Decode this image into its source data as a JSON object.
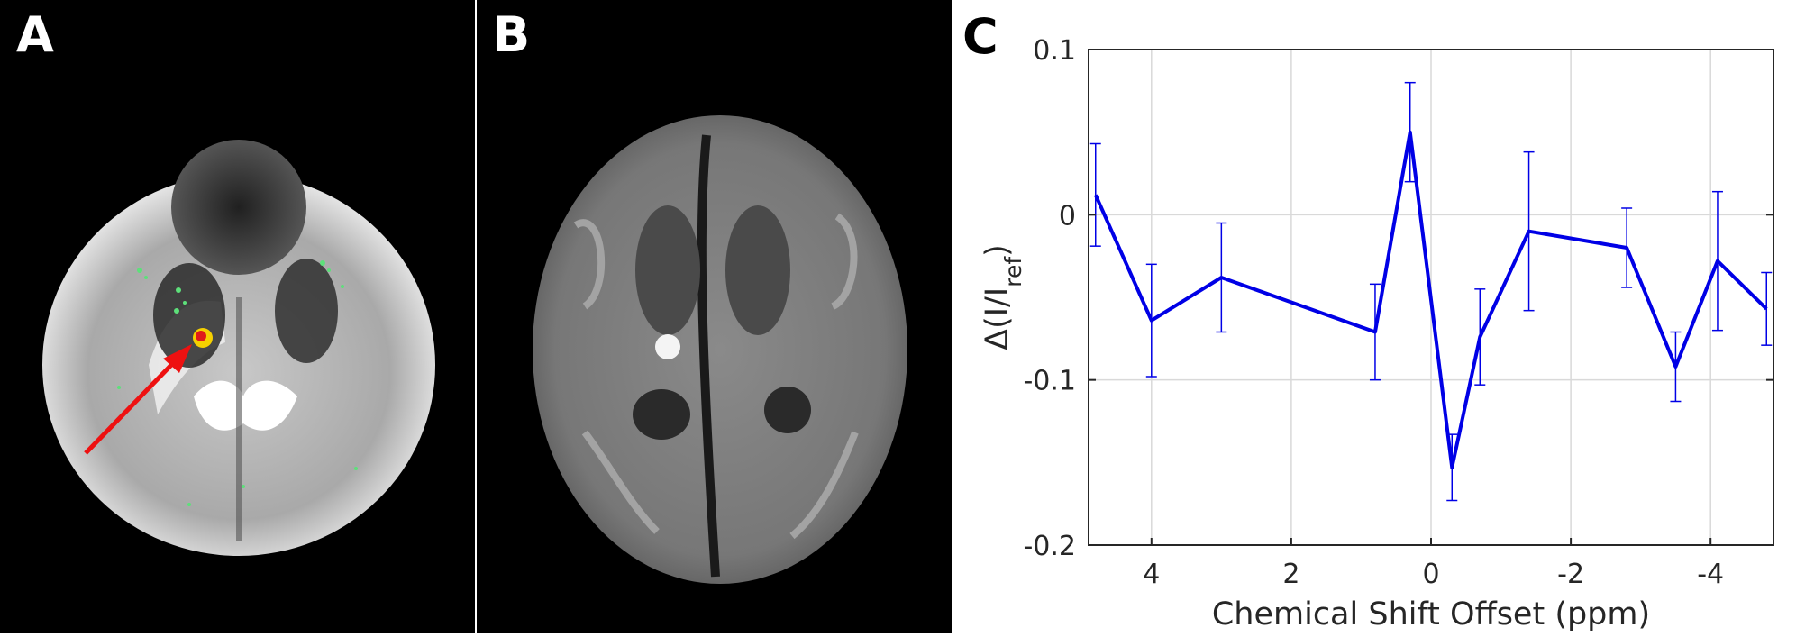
{
  "panels": {
    "a": {
      "letter": "A"
    },
    "b": {
      "letter": "B"
    },
    "c": {
      "letter": "C"
    }
  },
  "colors": {
    "series": "#0000e6",
    "arrow": "#ee1111",
    "grid": "#d9d9d9",
    "axis": "#262626"
  },
  "chart_data": {
    "type": "line",
    "title": "",
    "xlabel": "Chemical Shift Offset (ppm)",
    "ylabel": "Δ(I/I_ref)",
    "ylabel_main": "Δ(I/I",
    "ylabel_sub": "ref",
    "ylabel_close": ")",
    "xlim": [
      4.9,
      -4.9
    ],
    "ylim": [
      -0.2,
      0.1
    ],
    "xticks": [
      4,
      2,
      0,
      -2,
      -4
    ],
    "xtick_labels": [
      "4",
      "2",
      "0",
      "-2",
      "-4"
    ],
    "yticks": [
      0.1,
      0,
      -0.1,
      -0.2
    ],
    "ytick_labels": [
      "0.1",
      "0",
      "-0.1",
      "-0.2"
    ],
    "grid": true,
    "series": [
      {
        "x": [
          4.8,
          4.0,
          3.0,
          0.8,
          0.3,
          -0.3,
          -0.7,
          -1.4,
          -2.8,
          -3.5,
          -4.1,
          -4.8
        ],
        "y": [
          0.012,
          -0.064,
          -0.038,
          -0.071,
          0.05,
          -0.153,
          -0.074,
          -0.01,
          -0.02,
          -0.092,
          -0.028,
          -0.057
        ],
        "err": [
          0.031,
          0.034,
          0.033,
          0.029,
          0.03,
          0.02,
          0.029,
          0.048,
          0.024,
          0.021,
          0.042,
          0.022
        ]
      }
    ]
  }
}
